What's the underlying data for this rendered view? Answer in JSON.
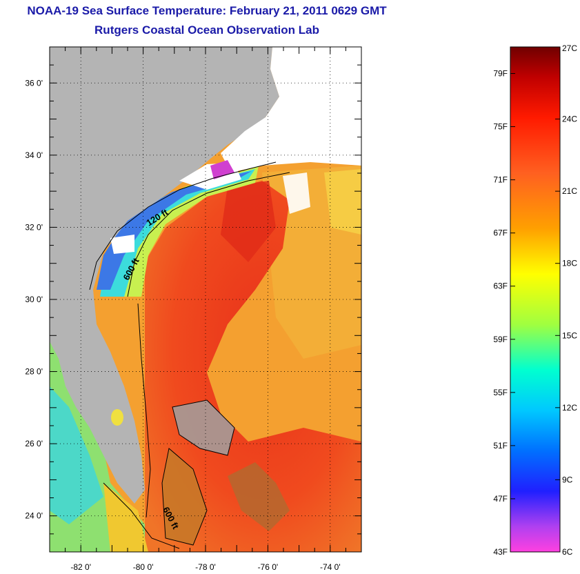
{
  "header": {
    "title": "NOAA-19 Sea Surface Temperature:  February 21, 2011 0629 GMT",
    "subtitle": "Rutgers Coastal Ocean Observation Lab"
  },
  "map": {
    "lon_range": [
      -83,
      -73
    ],
    "lat_range": [
      23,
      37
    ],
    "lon_ticks": [
      {
        "value": -82,
        "label": "-82 0'"
      },
      {
        "value": -80,
        "label": "-80 0'"
      },
      {
        "value": -78,
        "label": "-78 0'"
      },
      {
        "value": -76,
        "label": "-76 0'"
      },
      {
        "value": -74,
        "label": "-74 0'"
      }
    ],
    "lat_ticks": [
      {
        "value": 36,
        "label": "36 0'"
      },
      {
        "value": 34,
        "label": "34 0'"
      },
      {
        "value": 32,
        "label": "32 0'"
      },
      {
        "value": 30,
        "label": "30 0'"
      },
      {
        "value": 28,
        "label": "28 0'"
      },
      {
        "value": 26,
        "label": "26 0'"
      },
      {
        "value": 24,
        "label": "24 0'"
      }
    ],
    "contour_labels": [
      {
        "text": "120 ft",
        "lon": -79.5,
        "lat": 32.2,
        "rotate": -32
      },
      {
        "text": "600 ft",
        "lon": -80.3,
        "lat": 30.8,
        "rotate": -62
      },
      {
        "text": "600 ft",
        "lon": -79.2,
        "lat": 23.9,
        "rotate": 62
      }
    ],
    "colors": {
      "land": "#b4b4b4",
      "cloud": "#ffffff",
      "gulf_stream": "#f03c1e",
      "shelf_cold": "#3c78e6",
      "shelf_mid": "#3cdcdc",
      "shelf_warm": "#c8f050",
      "offshore": "#f08c28"
    },
    "grid": true
  },
  "colorbar": {
    "range_c": [
      6,
      27
    ],
    "range_f": [
      43,
      81
    ],
    "fahrenheit": [
      {
        "value": 43,
        "label": "43F"
      },
      {
        "value": 47,
        "label": "47F"
      },
      {
        "value": 51,
        "label": "51F"
      },
      {
        "value": 55,
        "label": "55F"
      },
      {
        "value": 59,
        "label": "59F"
      },
      {
        "value": 63,
        "label": "63F"
      },
      {
        "value": 67,
        "label": "67F"
      },
      {
        "value": 71,
        "label": "71F"
      },
      {
        "value": 75,
        "label": "75F"
      },
      {
        "value": 79,
        "label": "79F"
      }
    ],
    "celsius": [
      {
        "value": 6,
        "label": "6C"
      },
      {
        "value": 9,
        "label": "9C"
      },
      {
        "value": 12,
        "label": "12C"
      },
      {
        "value": 15,
        "label": "15C"
      },
      {
        "value": 18,
        "label": "18C"
      },
      {
        "value": 21,
        "label": "21C"
      },
      {
        "value": 24,
        "label": "24C"
      },
      {
        "value": 27,
        "label": "27C"
      }
    ],
    "gradient_stops": [
      {
        "t": 0.0,
        "color": "#ff40e0"
      },
      {
        "t": 0.05,
        "color": "#b040f0"
      },
      {
        "t": 0.12,
        "color": "#2020ff"
      },
      {
        "t": 0.2,
        "color": "#0070ff"
      },
      {
        "t": 0.28,
        "color": "#00c8ff"
      },
      {
        "t": 0.36,
        "color": "#00ffd0"
      },
      {
        "t": 0.45,
        "color": "#a0ff40"
      },
      {
        "t": 0.55,
        "color": "#ffff00"
      },
      {
        "t": 0.64,
        "color": "#ffa000"
      },
      {
        "t": 0.75,
        "color": "#ff6020"
      },
      {
        "t": 0.86,
        "color": "#ff1a00"
      },
      {
        "t": 0.94,
        "color": "#c00000"
      },
      {
        "t": 1.0,
        "color": "#700000"
      }
    ]
  }
}
